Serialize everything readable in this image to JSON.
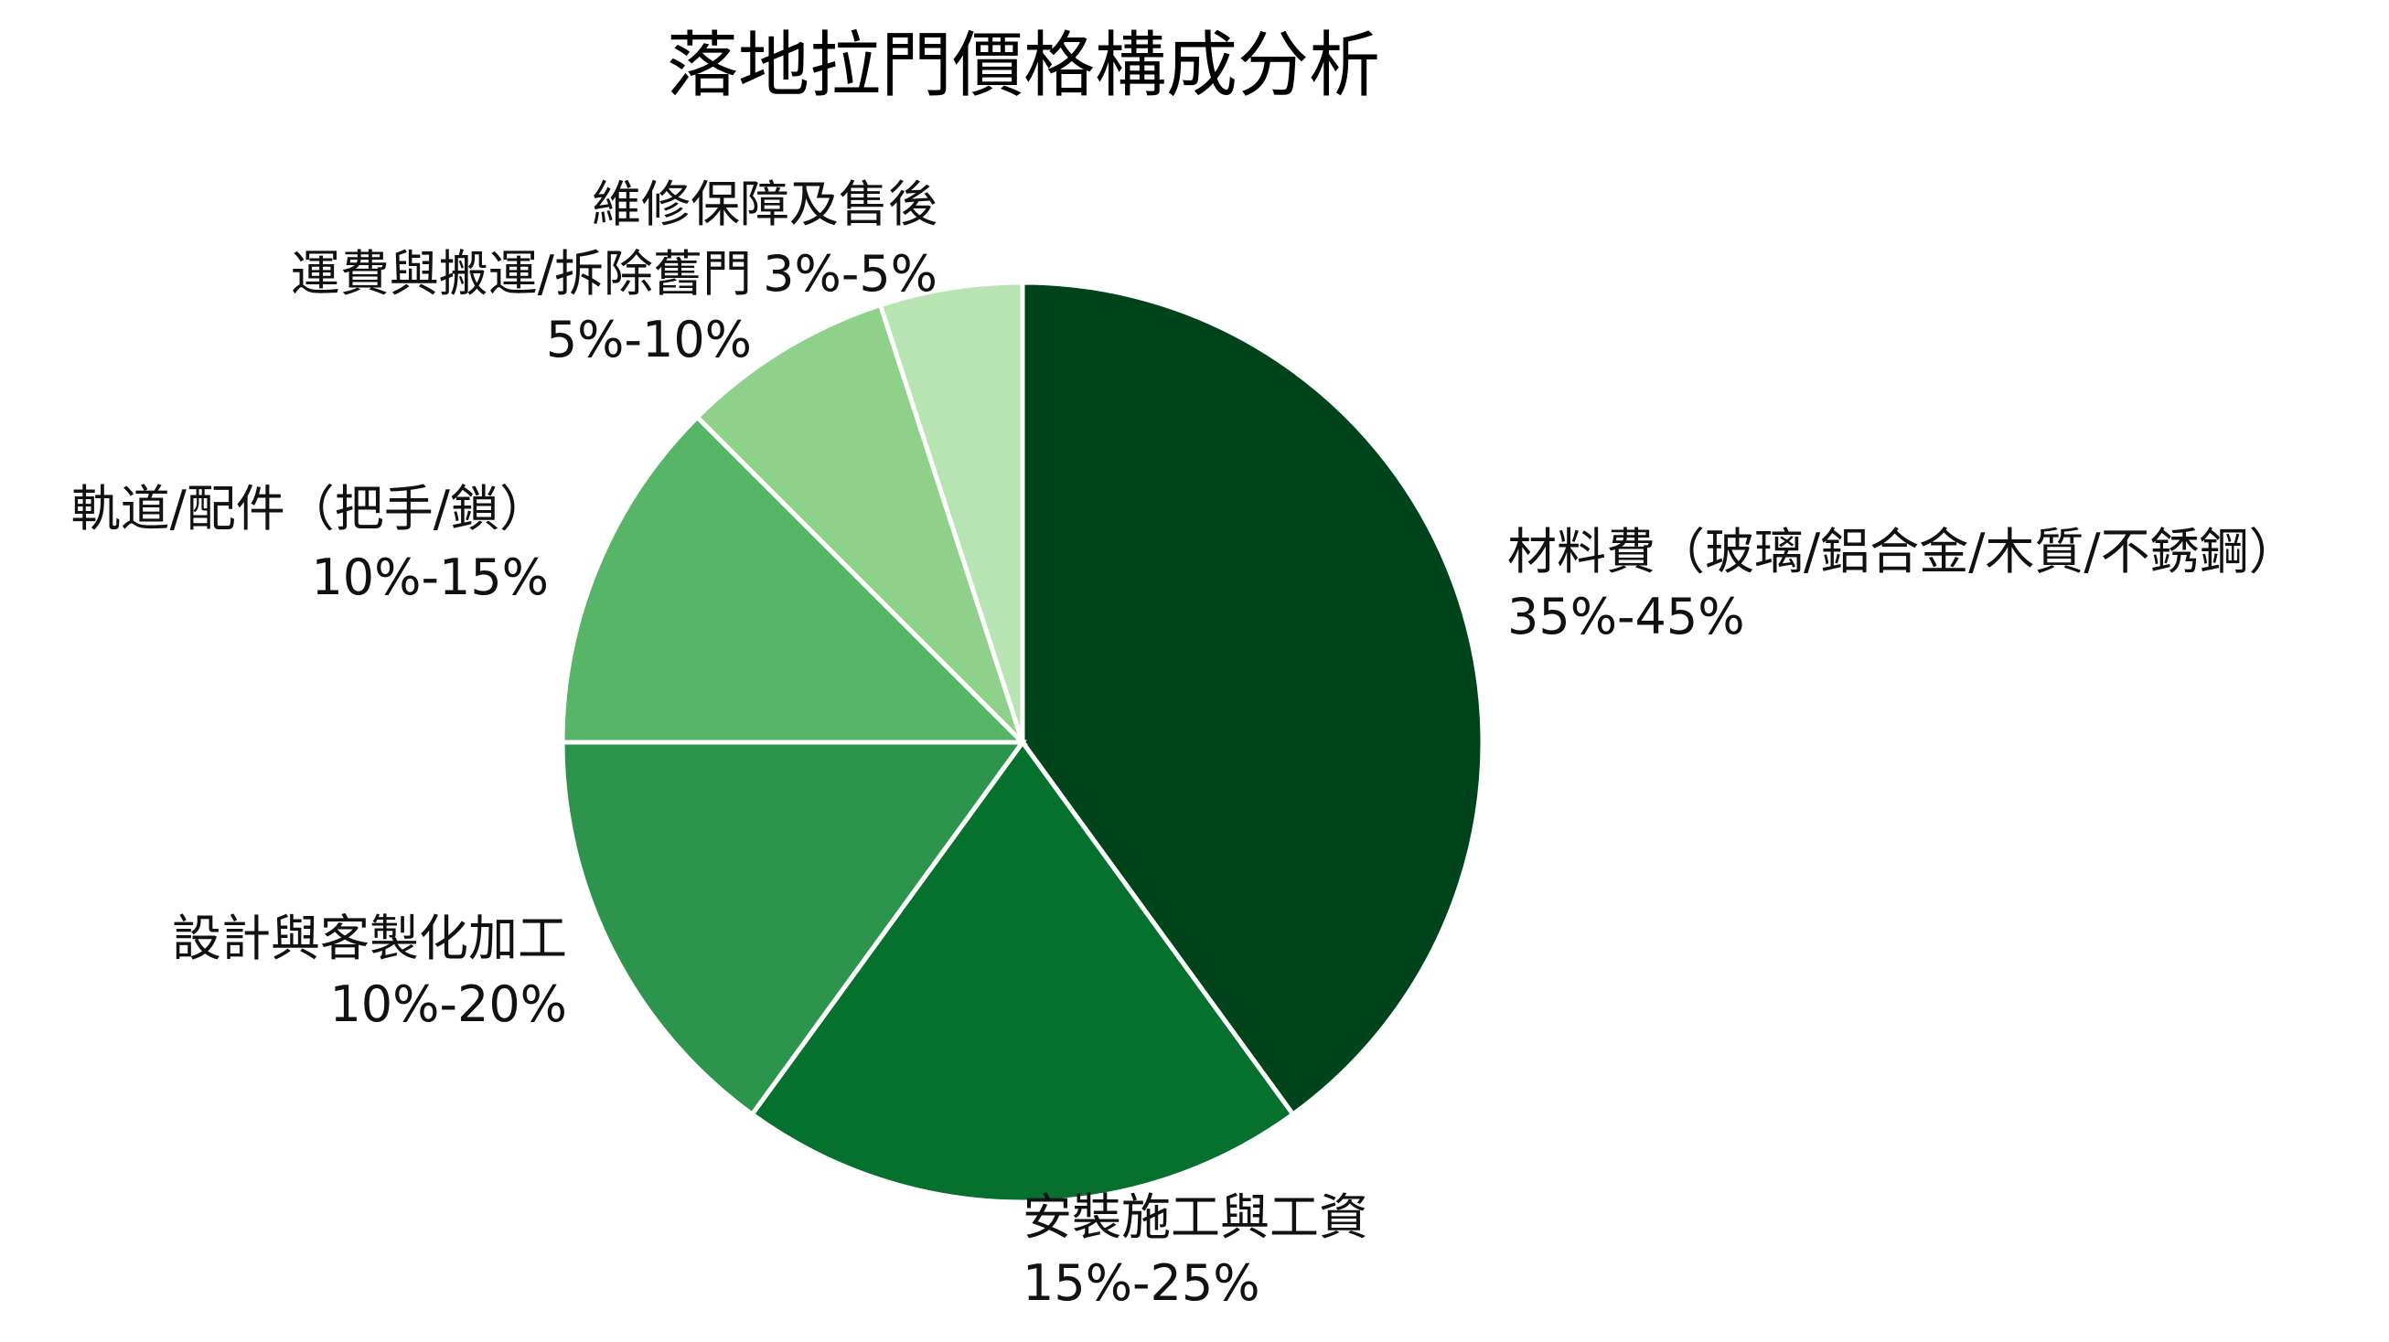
{
  "chart_data": {
    "type": "pie",
    "title": "落地拉門價格構成分析",
    "slices": [
      {
        "label": "材料費（玻璃/鋁合金/木質/不銹鋼）",
        "range": "35%-45%",
        "value": 40,
        "color": "#00441b"
      },
      {
        "label": "安裝施工與工資",
        "range": "15%-25%",
        "value": 20,
        "color": "#06702f"
      },
      {
        "label": "設計與客製化加工",
        "range": "10%-20%",
        "value": 15,
        "color": "#2c944c"
      },
      {
        "label": "軌道/配件（把手/鎖）",
        "range": "10%-15%",
        "value": 12.5,
        "color": "#56b567"
      },
      {
        "label": "運費與搬運/拆除舊門",
        "range": "5%-10%",
        "value": 7.5,
        "color": "#8fd18a"
      },
      {
        "label": "維修保障及售後",
        "range": "3%-5%",
        "value": 5,
        "color": "#b8e3b2"
      }
    ],
    "start_angle": "12 o'clock",
    "direction": "clockwise",
    "legend": "none"
  }
}
